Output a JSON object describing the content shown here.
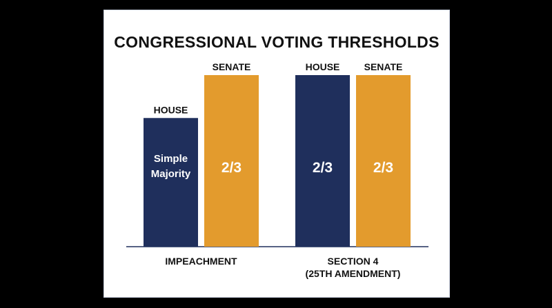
{
  "colors": {
    "house": "#1f2f5c",
    "senate": "#e39b2d",
    "baseline": "#1f2f5c",
    "background": "#000000"
  },
  "chart_data": {
    "type": "bar",
    "title": "CONGRESSIONAL VOTING THRESHOLDS",
    "categories": [
      "IMPEACHMENT",
      "SECTION 4\n(25TH AMENDMENT)"
    ],
    "series": [
      {
        "name": "HOUSE",
        "values": [
          0.5,
          0.6667
        ],
        "labels": [
          "Simple\nMajority",
          "2/3"
        ]
      },
      {
        "name": "SENATE",
        "values": [
          0.6667,
          0.6667
        ],
        "labels": [
          "2/3",
          "2/3"
        ]
      }
    ],
    "ylim": [
      0,
      0.6667
    ],
    "grid": false,
    "legend": "none"
  }
}
